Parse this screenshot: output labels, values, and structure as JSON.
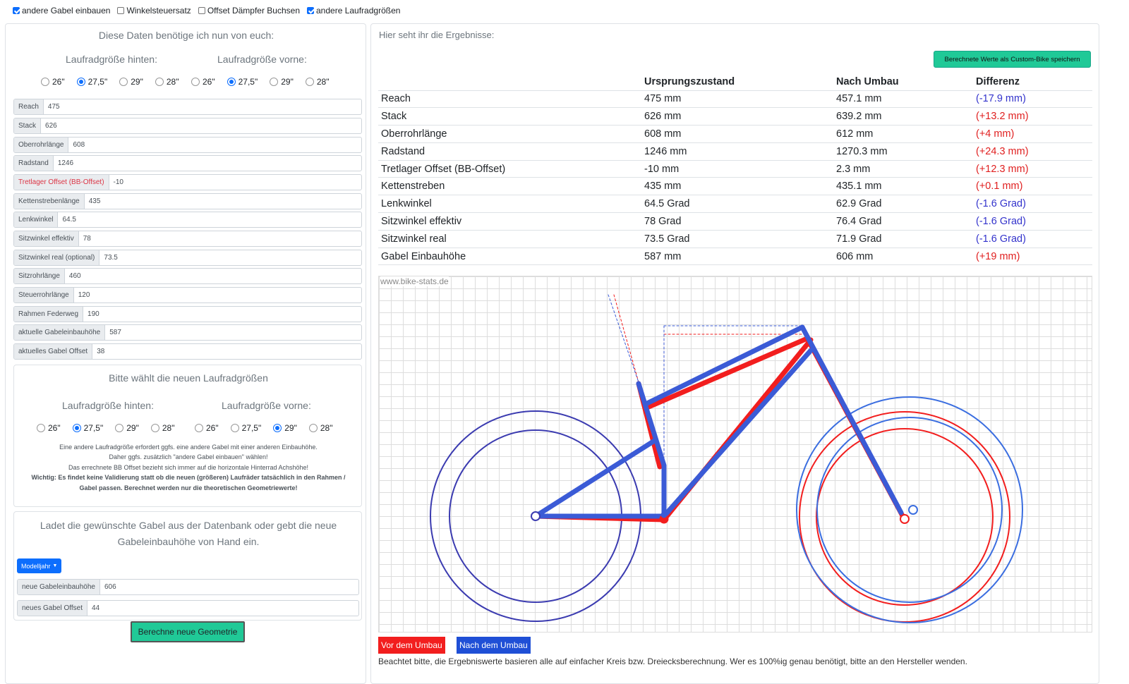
{
  "topbar": {
    "opt1": "andere Gabel einbauen",
    "opt2": "Winkelsteuersatz",
    "opt3": "Offset Dämpfer Buchsen",
    "opt4": "andere Laufradgrößen"
  },
  "left": {
    "title": "Diese Daten benötige ich nun von euch:",
    "rear_label": "Laufradgröße hinten:",
    "front_label": "Laufradgröße vorne:",
    "sizes": [
      "26\"",
      "27,5\"",
      "29\"",
      "28\""
    ],
    "fields": [
      {
        "label": "Reach",
        "value": "475"
      },
      {
        "label": "Stack",
        "value": "626"
      },
      {
        "label": "Oberrohrlänge",
        "value": "608"
      },
      {
        "label": "Radstand",
        "value": "1246"
      },
      {
        "label": "Tretlager Offset (BB-Offset)",
        "value": "-10"
      },
      {
        "label": "Kettenstrebenlänge",
        "value": "435"
      },
      {
        "label": "Lenkwinkel",
        "value": "64.5"
      },
      {
        "label": "Sitzwinkel effektiv",
        "value": "78"
      },
      {
        "label": "Sitzwinkel real (optional)",
        "value": "73.5"
      },
      {
        "label": "Sitzrohrlänge",
        "value": "460"
      },
      {
        "label": "Steuerrohrlänge",
        "value": "120"
      },
      {
        "label": "Rahmen Federweg",
        "value": "190"
      },
      {
        "label": "aktuelle Gabeleinbauhöhe",
        "value": "587"
      },
      {
        "label": "aktuelles Gabel Offset",
        "value": "38"
      }
    ],
    "new_title": "Bitte wählt die neuen Laufradgrößen",
    "note1": "Eine andere Laufradgröße erfordert ggfs. eine andere Gabel mit einer anderen Einbauhöhe.",
    "note2": "Daher ggfs. zusätzlich \"andere Gabel einbauen\" wählen!",
    "note3": "Das errechnete BB Offset bezieht sich immer auf die horizontale Hinterrad Achshöhe!",
    "note4": "Wichtig: Es findet keine Validierung statt ob die neuen (größeren) Laufräder tatsächlich in den Rahmen /",
    "note5": "Gabel passen. Berechnet werden nur die theoretischen Geometriewerte!",
    "fork_title1": "Ladet die gewünschte Gabel aus der Datenbank oder gebt die neue",
    "fork_title2": "Gabeleinbauhöhe von Hand ein.",
    "model_button": "Modelljahr",
    "new_fork_label": "neue Gabeleinbauhöhe",
    "new_fork_value": "606",
    "new_offset_label": "neues Gabel Offset",
    "new_offset_value": "44",
    "calc_button": "Berechne neue Geometrie"
  },
  "right": {
    "title": "Hier seht ihr die Ergebnisse:",
    "save_button": "Berechnete Werte als Custom-Bike speichern",
    "headers": [
      "",
      "Ursprungszustand",
      "Nach Umbau",
      "Differenz"
    ],
    "rows": [
      [
        "Reach",
        "475 mm",
        "457.1 mm",
        "(-17.9 mm)"
      ],
      [
        "Stack",
        "626 mm",
        "639.2 mm",
        "(+13.2 mm)"
      ],
      [
        "Oberrohrlänge",
        "608 mm",
        "612 mm",
        "(+4 mm)"
      ],
      [
        "Radstand",
        "1246 mm",
        "1270.3 mm",
        "(+24.3 mm)"
      ],
      [
        "Tretlager Offset (BB-Offset)",
        "-10 mm",
        "2.3 mm",
        "(+12.3 mm)"
      ],
      [
        "Kettenstreben",
        "435 mm",
        "435.1 mm",
        "(+0.1 mm)"
      ],
      [
        "Lenkwinkel",
        "64.5 Grad",
        "62.9 Grad",
        "(-1.6 Grad)"
      ],
      [
        "Sitzwinkel effektiv",
        "78 Grad",
        "76.4 Grad",
        "(-1.6 Grad)"
      ],
      [
        "Sitzwinkel real",
        "73.5 Grad",
        "71.9 Grad",
        "(-1.6 Grad)"
      ],
      [
        "Gabel Einbauhöhe",
        "587 mm",
        "606 mm",
        "(+19 mm)"
      ]
    ],
    "watermark": "www.bike-stats.de",
    "legend_before": "Vor dem Umbau",
    "legend_after": "Nach dem Umbau",
    "footnote": "Beachtet bitte, die Ergebniswerte basieren alle auf einfacher Kreis bzw. Dreiecksberechnung. Wer es 100%ig genau benötigt, bitte an den Hersteller wenden.",
    "colors": {
      "before": "#f21e1e",
      "after": "#3b5bd6",
      "neg": "#3333cc",
      "pos": "#e02020"
    }
  }
}
